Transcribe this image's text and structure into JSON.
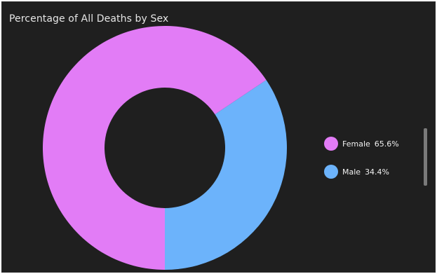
{
  "chart_data": {
    "type": "pie",
    "title": "Percentage of All Deaths by Sex",
    "donut": true,
    "categories": [
      "Female",
      "Male"
    ],
    "values": [
      65.6,
      34.4
    ],
    "value_labels": [
      "65.6%",
      "34.4%"
    ],
    "colors": [
      "#e27cf6",
      "#6cb3fb"
    ],
    "legend_position": "right"
  },
  "background_color": "#1f1f1f"
}
